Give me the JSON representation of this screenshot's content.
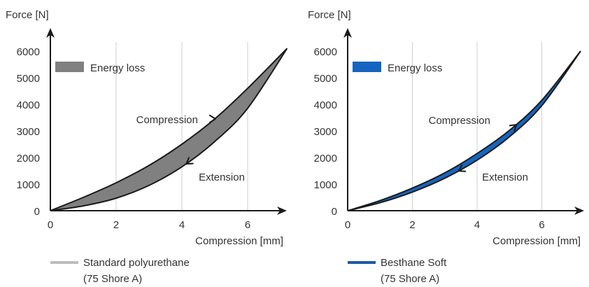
{
  "chart_data": [
    {
      "type": "area",
      "ylabel": "Force [N]",
      "xlabel": "Compression [mm]",
      "xlim": [
        0,
        7.2
      ],
      "ylim": [
        0,
        6000
      ],
      "x_ticks": [
        0,
        2,
        4,
        6
      ],
      "y_ticks": [
        0,
        1000,
        2000,
        3000,
        4000,
        5000,
        6000
      ],
      "grid": "vertical",
      "legend": {
        "label": "Energy loss",
        "placement": "top-left"
      },
      "annotations": [
        "Compression",
        "Extension"
      ],
      "footer": {
        "name": "Standard polyurethane",
        "detail": "(75 Shore A)"
      },
      "colors": {
        "fill": "#808080",
        "edge": "#1a1a1a",
        "footer_line": "#bdbdbd"
      },
      "series": [
        {
          "name": "Compression",
          "x": [
            0,
            1,
            2,
            3,
            4,
            5,
            6,
            7.2
          ],
          "y": [
            0,
            500,
            1050,
            1700,
            2500,
            3450,
            4600,
            6100
          ]
        },
        {
          "name": "Extension",
          "x": [
            0,
            1,
            2,
            3,
            4,
            5,
            6,
            7.2
          ],
          "y": [
            0,
            180,
            470,
            950,
            1650,
            2600,
            3850,
            6100
          ]
        }
      ]
    },
    {
      "type": "area",
      "ylabel": "Force [N]",
      "xlabel": "Compression [mm]",
      "xlim": [
        0,
        7.2
      ],
      "ylim": [
        0,
        6000
      ],
      "x_ticks": [
        0,
        2,
        4,
        6
      ],
      "y_ticks": [
        0,
        1000,
        2000,
        3000,
        4000,
        5000,
        6000
      ],
      "grid": "vertical",
      "legend": {
        "label": "Energy loss",
        "placement": "top-left"
      },
      "annotations": [
        "Compression",
        "Extension"
      ],
      "footer": {
        "name": "Besthane Soft",
        "detail": "(75 Shore A)"
      },
      "colors": {
        "fill": "#1565c0",
        "edge": "#1a1a1a",
        "footer_line": "#1a5aa8"
      },
      "series": [
        {
          "name": "Compression",
          "x": [
            0,
            1,
            2,
            3,
            4,
            5,
            6,
            7.2
          ],
          "y": [
            0,
            380,
            850,
            1420,
            2150,
            3020,
            4150,
            6000
          ]
        },
        {
          "name": "Extension",
          "x": [
            0,
            1,
            2,
            3,
            4,
            5,
            6,
            7.2
          ],
          "y": [
            0,
            300,
            700,
            1220,
            1900,
            2780,
            3950,
            6000
          ]
        }
      ]
    }
  ]
}
